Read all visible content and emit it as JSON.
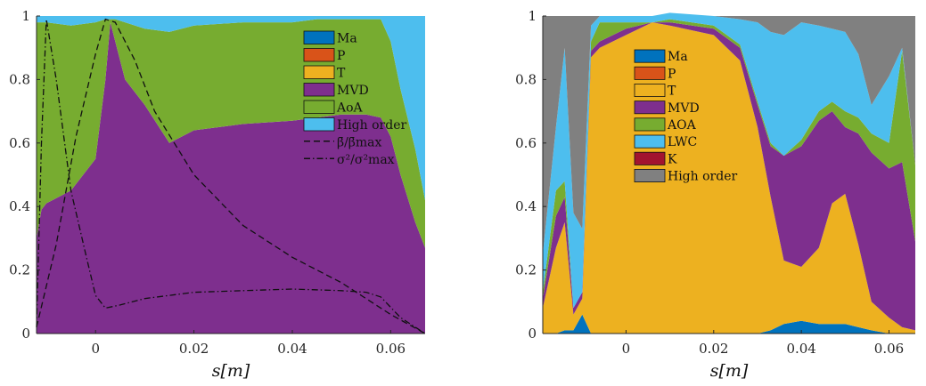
{
  "chart_data": [
    {
      "type": "area",
      "stacked": true,
      "xlabel": "s[m]",
      "ylabel": "",
      "xlim": [
        -0.012,
        0.067
      ],
      "ylim": [
        0,
        1
      ],
      "xticks": [
        "0",
        "0.02",
        "0.04",
        "0.06"
      ],
      "xtick_values": [
        0,
        0.02,
        0.04,
        0.06
      ],
      "yticks": [
        "0",
        "0.2",
        "0.4",
        "0.6",
        "0.8",
        "1"
      ],
      "ytick_values": [
        0,
        0.2,
        0.4,
        0.6,
        0.8,
        1
      ],
      "legend_position": "top-right",
      "x": [
        -0.012,
        -0.011,
        -0.01,
        -0.005,
        0,
        0.002,
        0.003,
        0.004,
        0.006,
        0.01,
        0.015,
        0.02,
        0.03,
        0.04,
        0.045,
        0.05,
        0.055,
        0.058,
        0.06,
        0.062,
        0.065,
        0.067
      ],
      "series": [
        {
          "name": "Ma",
          "color": "#0072BD",
          "values": [
            0,
            0,
            0,
            0,
            0,
            0,
            0,
            0,
            0,
            0,
            0,
            0,
            0,
            0,
            0,
            0,
            0,
            0,
            0,
            0,
            0,
            0
          ]
        },
        {
          "name": "P",
          "color": "#D95319",
          "values": [
            0,
            0,
            0,
            0,
            0,
            0,
            0,
            0,
            0,
            0,
            0,
            0,
            0,
            0,
            0,
            0,
            0,
            0,
            0,
            0,
            0,
            0
          ]
        },
        {
          "name": "T",
          "color": "#EDB120",
          "values": [
            0,
            0,
            0,
            0,
            0,
            0,
            0,
            0,
            0,
            0,
            0,
            0,
            0,
            0,
            0,
            0,
            0,
            0,
            0,
            0,
            0,
            0
          ]
        },
        {
          "name": "MVD",
          "color": "#7E2F8E",
          "values": [
            0.3,
            0.39,
            0.41,
            0.45,
            0.55,
            0.8,
            0.98,
            0.92,
            0.8,
            0.72,
            0.6,
            0.64,
            0.66,
            0.67,
            0.68,
            0.69,
            0.69,
            0.68,
            0.62,
            0.5,
            0.35,
            0.27
          ]
        },
        {
          "name": "AoA",
          "color": "#77AC30",
          "values": [
            0.68,
            0.59,
            0.57,
            0.52,
            0.43,
            0.19,
            0.01,
            0.07,
            0.18,
            0.24,
            0.35,
            0.33,
            0.32,
            0.31,
            0.31,
            0.3,
            0.3,
            0.31,
            0.3,
            0.27,
            0.23,
            0.15
          ]
        },
        {
          "name": "High order",
          "color": "#4DBEEE",
          "values": [
            0.02,
            0.02,
            0.02,
            0.03,
            0.02,
            0.01,
            0.01,
            0.01,
            0.02,
            0.04,
            0.05,
            0.03,
            0.02,
            0.02,
            0.01,
            0.01,
            0.01,
            0.01,
            0.08,
            0.23,
            0.42,
            0.58
          ]
        }
      ],
      "lines": [
        {
          "name": "β̄/β̄max",
          "style": "dashed",
          "x": [
            -0.012,
            -0.008,
            -0.004,
            0,
            0.002,
            0.004,
            0.008,
            0.012,
            0.02,
            0.03,
            0.04,
            0.05,
            0.06,
            0.067
          ],
          "values": [
            0.02,
            0.28,
            0.62,
            0.88,
            0.99,
            0.98,
            0.86,
            0.7,
            0.5,
            0.34,
            0.24,
            0.16,
            0.06,
            0.0
          ]
        },
        {
          "name": "σ²/σ²max",
          "style": "dashdot",
          "x": [
            -0.012,
            -0.011,
            -0.01,
            -0.008,
            -0.005,
            -0.002,
            0,
            0.002,
            0.005,
            0.01,
            0.02,
            0.03,
            0.04,
            0.05,
            0.055,
            0.058,
            0.062,
            0.067
          ],
          "values": [
            0.02,
            0.6,
            0.99,
            0.8,
            0.45,
            0.25,
            0.12,
            0.08,
            0.09,
            0.11,
            0.13,
            0.135,
            0.14,
            0.135,
            0.13,
            0.115,
            0.05,
            0.0
          ]
        }
      ],
      "legend_entries": [
        "Ma",
        "P",
        "T",
        "MVD",
        "AoA",
        "High order",
        "β̄/β̄max",
        "σ²/σ²max"
      ]
    },
    {
      "type": "area",
      "stacked": true,
      "xlabel": "s[m]",
      "ylabel": "",
      "xlim": [
        -0.019,
        0.066
      ],
      "ylim": [
        0,
        1
      ],
      "xticks": [
        "0",
        "0.02",
        "0.04",
        "0.06"
      ],
      "xtick_values": [
        0,
        0.02,
        0.04,
        0.06
      ],
      "yticks": [
        "0",
        "0.2",
        "0.4",
        "0.6",
        "0.8",
        "1"
      ],
      "ytick_values": [
        0,
        0.2,
        0.4,
        0.6,
        0.8,
        1
      ],
      "legend_position": "top-left",
      "x": [
        -0.019,
        -0.016,
        -0.014,
        -0.012,
        -0.01,
        -0.008,
        -0.006,
        0,
        0.006,
        0.01,
        0.02,
        0.026,
        0.03,
        0.033,
        0.036,
        0.04,
        0.044,
        0.047,
        0.05,
        0.053,
        0.056,
        0.06,
        0.063,
        0.066
      ],
      "series": [
        {
          "name": "Ma",
          "color": "#0072BD",
          "values": [
            0.0,
            0.0,
            0.01,
            0.01,
            0.06,
            0.0,
            0.0,
            0.0,
            0.0,
            0.0,
            0.0,
            0.0,
            0.0,
            0.01,
            0.03,
            0.04,
            0.03,
            0.03,
            0.03,
            0.02,
            0.01,
            0.0,
            0.0,
            0.0
          ]
        },
        {
          "name": "P",
          "color": "#D95319",
          "values": [
            0,
            0,
            0,
            0,
            0,
            0,
            0,
            0,
            0,
            0,
            0,
            0,
            0,
            0,
            0,
            0,
            0,
            0,
            0,
            0,
            0,
            0,
            0,
            0
          ]
        },
        {
          "name": "T",
          "color": "#EDB120",
          "values": [
            0.08,
            0.27,
            0.34,
            0.05,
            0.05,
            0.87,
            0.9,
            0.94,
            0.98,
            0.97,
            0.94,
            0.86,
            0.65,
            0.42,
            0.2,
            0.17,
            0.24,
            0.38,
            0.41,
            0.26,
            0.09,
            0.05,
            0.02,
            0.01
          ]
        },
        {
          "name": "MVD",
          "color": "#7E2F8E",
          "values": [
            0.03,
            0.1,
            0.08,
            0.02,
            0.02,
            0.02,
            0.02,
            0.02,
            0.0,
            0.01,
            0.02,
            0.04,
            0.07,
            0.16,
            0.33,
            0.38,
            0.4,
            0.29,
            0.21,
            0.35,
            0.47,
            0.47,
            0.52,
            0.28
          ]
        },
        {
          "name": "AOA",
          "color": "#77AC30",
          "values": [
            0.02,
            0.08,
            0.05,
            0.0,
            0.0,
            0.03,
            0.06,
            0.02,
            0.0,
            0.01,
            0.01,
            0.01,
            0.01,
            0.01,
            0.0,
            0.02,
            0.03,
            0.03,
            0.05,
            0.05,
            0.06,
            0.08,
            0.35,
            0.24
          ]
        },
        {
          "name": "LWC",
          "color": "#4DBEEE",
          "values": [
            0.12,
            0.2,
            0.42,
            0.3,
            0.2,
            0.05,
            0.02,
            0.02,
            0.02,
            0.02,
            0.03,
            0.08,
            0.25,
            0.35,
            0.38,
            0.37,
            0.27,
            0.23,
            0.25,
            0.2,
            0.09,
            0.21,
            0.01,
            0.0
          ]
        },
        {
          "name": "K",
          "color": "#A2142F",
          "values": [
            0,
            0,
            0,
            0,
            0,
            0,
            0,
            0,
            0,
            0,
            0,
            0,
            0,
            0,
            0,
            0,
            0,
            0,
            0,
            0,
            0,
            0,
            0,
            0
          ]
        },
        {
          "name": "High order",
          "color": "#808080",
          "values": [
            0.75,
            0.35,
            0.1,
            0.62,
            0.67,
            0.03,
            0.0,
            0.0,
            0.0,
            0.0,
            0.0,
            0.01,
            0.02,
            0.05,
            0.06,
            0.02,
            0.03,
            0.04,
            0.05,
            0.12,
            0.28,
            0.19,
            0.1,
            0.47
          ]
        }
      ],
      "legend_entries": [
        "Ma",
        "P",
        "T",
        "MVD",
        "AOA",
        "LWC",
        "K",
        "High order"
      ]
    }
  ]
}
